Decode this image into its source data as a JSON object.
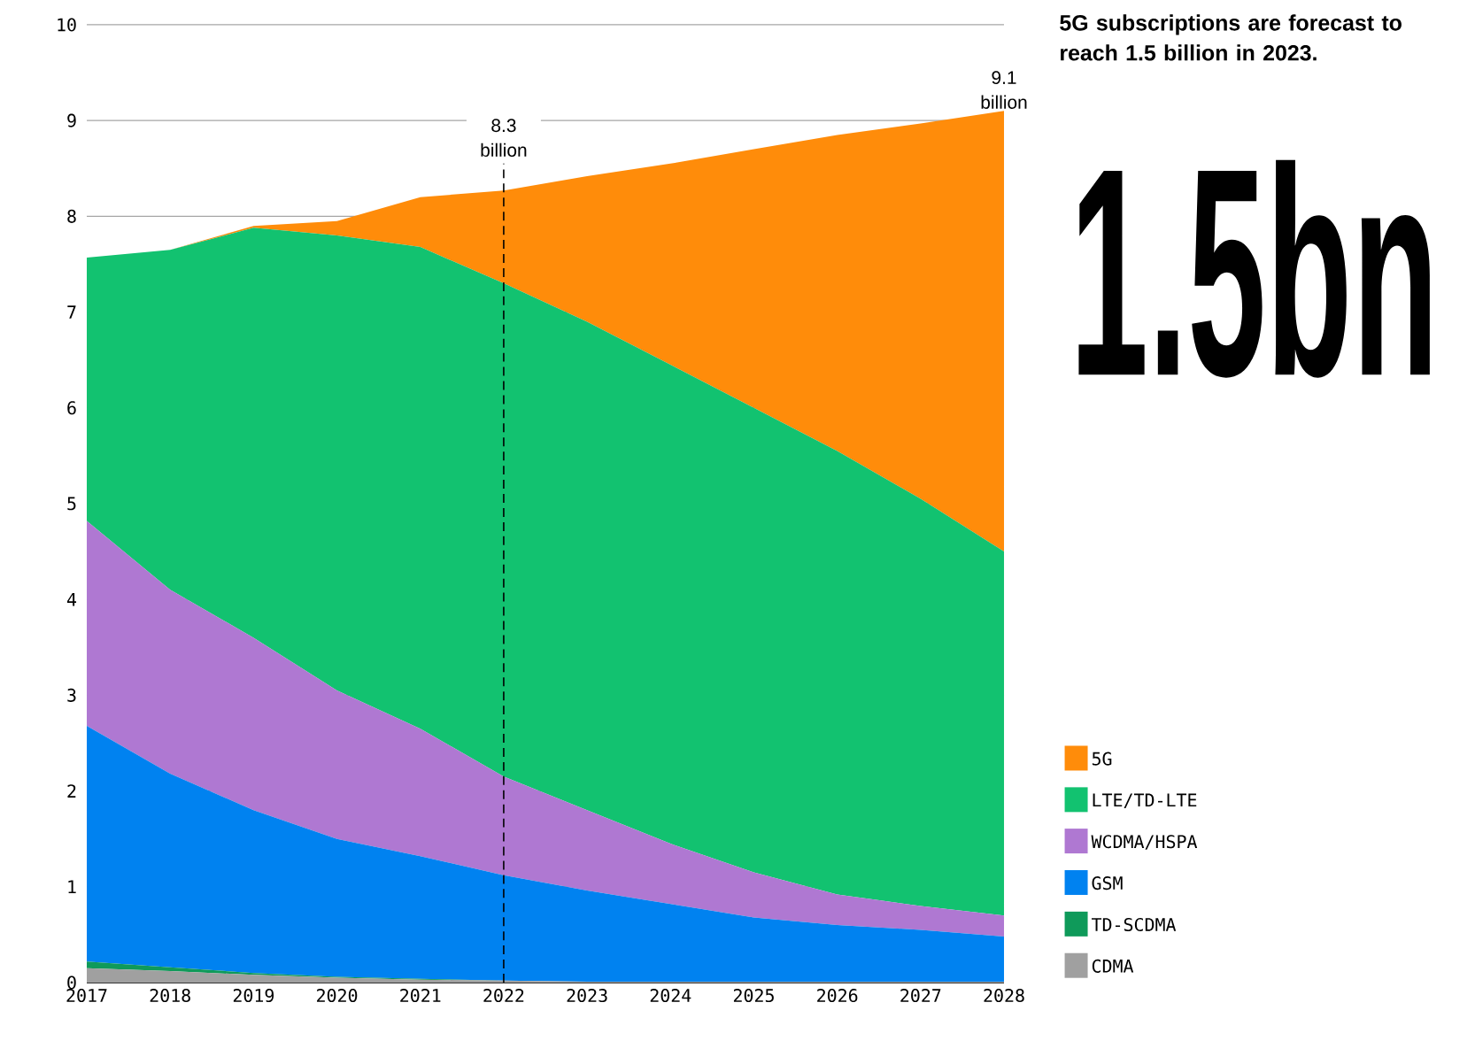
{
  "chart_data": {
    "type": "area",
    "stacked": true,
    "title": "5G subscriptions are forecast to reach 1.5 billion in 2023.",
    "x": [
      2017,
      2018,
      2019,
      2020,
      2021,
      2022,
      2023,
      2024,
      2025,
      2026,
      2027,
      2028
    ],
    "xlim": [
      2017,
      2028
    ],
    "xticks": [
      2017,
      2018,
      2019,
      2020,
      2021,
      2022,
      2023,
      2024,
      2025,
      2026,
      2027,
      2028
    ],
    "ylim": [
      0,
      10
    ],
    "yticks": [
      0,
      1,
      2,
      3,
      4,
      5,
      6,
      7,
      8,
      9,
      10
    ],
    "grid": "y",
    "legend": "right",
    "series": [
      {
        "name": "CDMA",
        "color": "#a0a0a0",
        "values": [
          0.15,
          0.12,
          0.08,
          0.05,
          0.03,
          0.02,
          0.01,
          0.01,
          0.01,
          0.01,
          0.01,
          0.01
        ]
      },
      {
        "name": "TD-SCDMA",
        "color": "#0f9a5a",
        "values": [
          0.07,
          0.04,
          0.02,
          0.01,
          0.01,
          0,
          0,
          0,
          0,
          0,
          0,
          0
        ]
      },
      {
        "name": "GSM",
        "color": "#0082f0",
        "values": [
          2.46,
          2.02,
          1.7,
          1.44,
          1.28,
          1.1,
          0.95,
          0.81,
          0.67,
          0.59,
          0.54,
          0.47
        ]
      },
      {
        "name": "WCDMA/HSPA",
        "color": "#af78d2",
        "values": [
          2.14,
          1.92,
          1.8,
          1.55,
          1.33,
          1.03,
          0.84,
          0.63,
          0.47,
          0.32,
          0.25,
          0.22
        ]
      },
      {
        "name": "LTE/TD-LTE",
        "color": "#12c270",
        "values": [
          2.75,
          3.55,
          4.28,
          4.75,
          5.03,
          5.15,
          5.1,
          5.0,
          4.85,
          4.63,
          4.25,
          3.8
        ]
      },
      {
        "name": "5G",
        "color": "#ff8c0a",
        "values": [
          0,
          0,
          0.02,
          0.15,
          0.52,
          0.97,
          1.52,
          2.1,
          2.7,
          3.3,
          3.92,
          4.6
        ]
      }
    ],
    "ref_lines": [
      {
        "axis": "x",
        "value": 2022,
        "label": "8.3 billion",
        "line_style": "dashed",
        "color": "#000000"
      }
    ],
    "annotations": [
      "1.5bn",
      {
        "text": "9.1 billion",
        "x": 2028,
        "y": 9.1
      }
    ]
  }
}
